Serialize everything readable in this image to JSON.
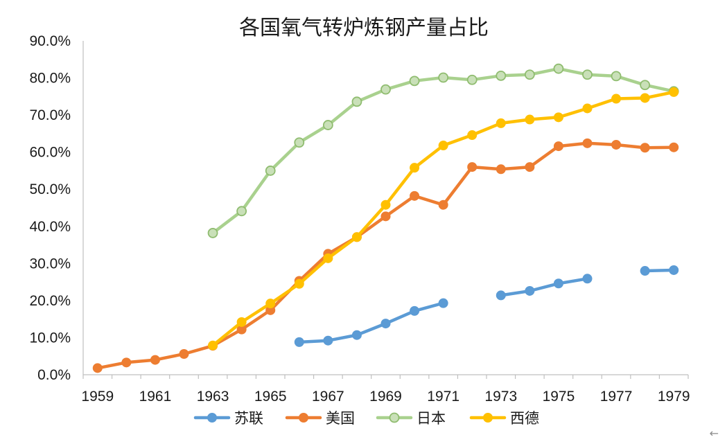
{
  "chart_data": {
    "type": "line",
    "title": "各国氧气转炉炼钢产量占比",
    "xlabel": "",
    "ylabel": "",
    "x": [
      1959,
      1960,
      1961,
      1962,
      1963,
      1964,
      1965,
      1966,
      1967,
      1968,
      1969,
      1970,
      1971,
      1972,
      1973,
      1974,
      1975,
      1976,
      1977,
      1978,
      1979
    ],
    "x_tick_labels": [
      "1959",
      "1961",
      "1963",
      "1965",
      "1967",
      "1969",
      "1971",
      "1973",
      "1975",
      "1977",
      "1979"
    ],
    "x_tick_values": [
      1959,
      1961,
      1963,
      1965,
      1967,
      1969,
      1971,
      1973,
      1975,
      1977,
      1979
    ],
    "ylim": [
      0,
      90
    ],
    "y_ticks": [
      0,
      10,
      20,
      30,
      40,
      50,
      60,
      70,
      80,
      90
    ],
    "y_tick_labels": [
      "0.0%",
      "10.0%",
      "20.0%",
      "30.0%",
      "40.0%",
      "50.0%",
      "60.0%",
      "70.0%",
      "80.0%",
      "90.0%"
    ],
    "legend_position": "bottom",
    "series": [
      {
        "name": "苏联",
        "color": "#5b9bd5",
        "values": [
          null,
          null,
          null,
          null,
          null,
          null,
          null,
          8.8,
          9.2,
          10.7,
          13.8,
          17.2,
          19.3,
          null,
          21.4,
          22.6,
          24.6,
          25.9,
          null,
          28.0,
          28.2
        ]
      },
      {
        "name": "美国",
        "color": "#ed7d31",
        "values": [
          1.8,
          3.3,
          4.0,
          5.6,
          7.8,
          12.2,
          17.4,
          25.3,
          32.6,
          37.1,
          42.7,
          48.2,
          45.8,
          56.0,
          55.4,
          56.0,
          61.6,
          62.4,
          62.0,
          61.2,
          61.3
        ]
      },
      {
        "name": "日本",
        "color": "#a9d18e",
        "values": [
          null,
          null,
          null,
          null,
          38.2,
          44.1,
          55.0,
          62.6,
          67.3,
          73.6,
          76.9,
          79.2,
          80.1,
          79.5,
          80.6,
          80.9,
          82.5,
          80.9,
          80.5,
          78.1,
          76.4
        ]
      },
      {
        "name": "西德",
        "color": "#ffc000",
        "values": [
          null,
          null,
          null,
          null,
          7.9,
          14.2,
          19.2,
          24.5,
          31.4,
          37.1,
          45.8,
          55.8,
          61.8,
          64.6,
          67.8,
          68.8,
          69.4,
          71.8,
          74.4,
          74.6,
          76.2
        ]
      }
    ]
  },
  "ui": {
    "corner_glyph": "←"
  }
}
